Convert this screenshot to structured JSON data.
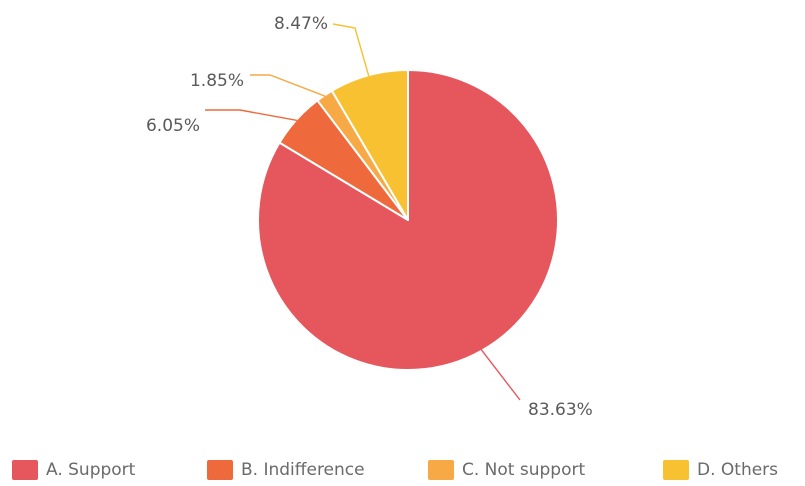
{
  "chart_data": {
    "type": "pie",
    "categories": [
      "A. Support",
      "B. Indifference",
      "C. Not support",
      "D. Others"
    ],
    "values": [
      83.63,
      6.05,
      1.85,
      8.47
    ],
    "value_labels": [
      "83.63%",
      "6.05%",
      "1.85%",
      "8.47%"
    ],
    "colors": [
      "#e5575d",
      "#ee6a3c",
      "#f6a945",
      "#f8c131"
    ],
    "legend_position": "bottom",
    "start_angle": "top",
    "direction": "clockwise"
  }
}
